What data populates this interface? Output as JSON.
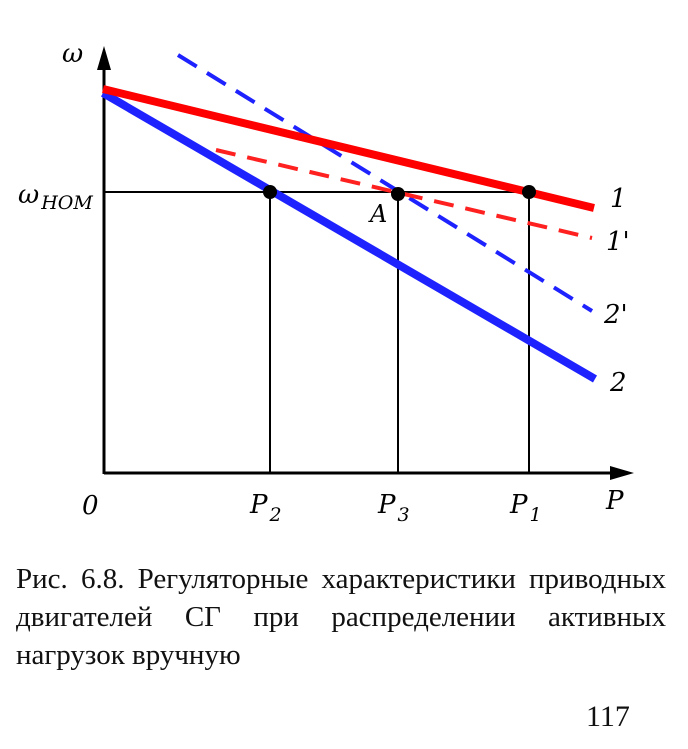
{
  "colors": {
    "line_1": "#ff0000",
    "line_1_prime": "#ff2020",
    "line_2": "#1e22ff",
    "line_2_prime": "#1e22ff",
    "axes": "#000000"
  },
  "axes": {
    "y_label": "ω",
    "x_label": "P",
    "origin": "0",
    "omega_nom_main": "ω",
    "omega_nom_sub": "НОМ"
  },
  "points": {
    "A": "A",
    "p1_main": "P",
    "p1_sub": "1",
    "p2_main": "P",
    "p2_sub": "2",
    "p3_main": "P",
    "p3_sub": "3"
  },
  "lines": {
    "line_1": "1",
    "line_1_prime": "1'",
    "line_2": "2",
    "line_2_prime": "2'"
  },
  "caption": "Рис. 6.8. Регуляторные характеристики приводных двигателей СГ при распределении активных нагрузок вручную",
  "page_number": "117"
}
